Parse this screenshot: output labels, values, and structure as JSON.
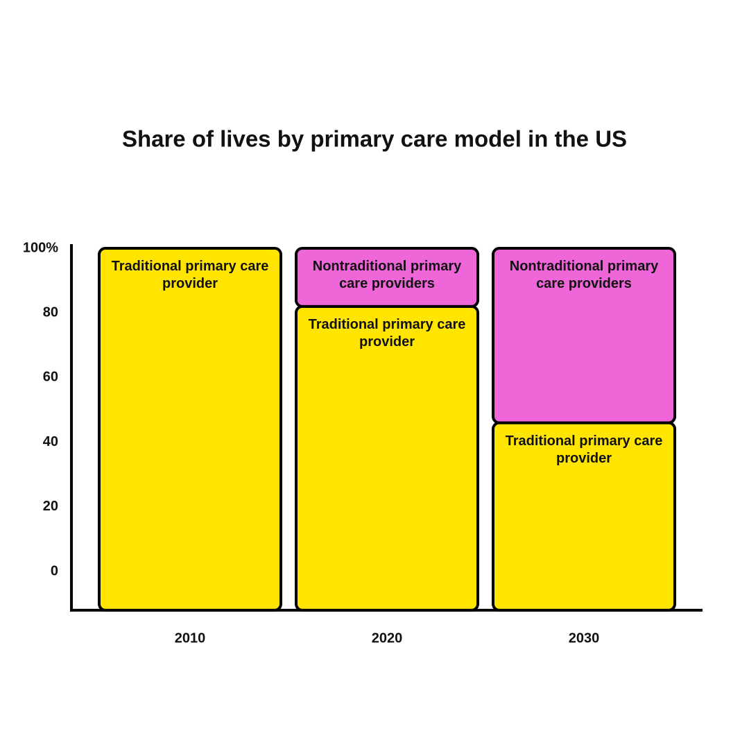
{
  "chart_data": {
    "type": "stacked-bar",
    "title": "Share of lives by primary care model in the US",
    "categories": [
      "2010",
      "2020",
      "2030"
    ],
    "series": [
      {
        "name": "Traditional primary care provider",
        "color": "#FFE500",
        "values": [
          100,
          82,
          46
        ]
      },
      {
        "name": "Nontraditional primary care providers",
        "color": "#EE66D8",
        "values": [
          0,
          18,
          54
        ]
      }
    ],
    "ylim": [
      -12,
      100
    ],
    "yticks": [
      {
        "value": 100,
        "label": "100%"
      },
      80,
      60,
      40,
      20,
      0
    ]
  }
}
